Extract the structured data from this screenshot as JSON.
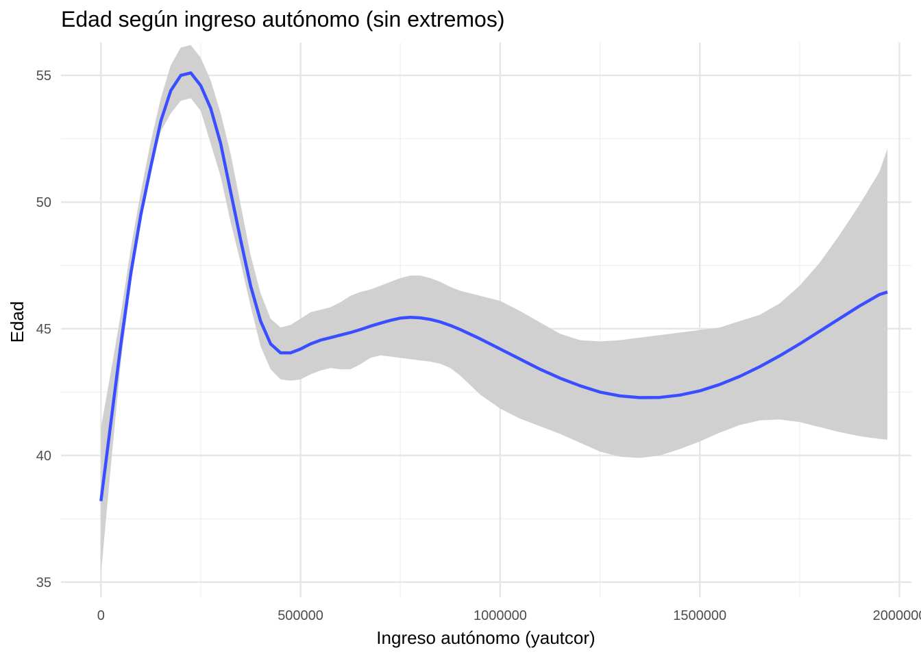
{
  "chart_data": {
    "type": "line",
    "title": "Edad según ingreso autónomo (sin extremos)",
    "xlabel": "Ingreso autónomo (yautcor)",
    "ylabel": "Edad",
    "xlim": [
      -100000,
      2030000
    ],
    "ylim": [
      34.4,
      56.3
    ],
    "xticks": [
      0,
      500000,
      1000000,
      1500000,
      2000000
    ],
    "xtick_labels": [
      "0",
      "500000",
      "1000000",
      "1500000",
      "2000000"
    ],
    "yticks": [
      35,
      40,
      45,
      50,
      55
    ],
    "ytick_labels": [
      "35",
      "40",
      "45",
      "50",
      "55"
    ],
    "x_minor": [
      250000,
      750000,
      1250000,
      1750000
    ],
    "y_minor": [
      37.5,
      42.5,
      47.5,
      52.5
    ],
    "grid": true,
    "legend": "none",
    "colors": {
      "line": "#3A4EFF",
      "ribbon": "#D0D0D0",
      "grid_major": "#E6E6E6",
      "grid_minor": "#F0F0F0",
      "background": "#FFFFFF"
    },
    "series": [
      {
        "x": [
          0,
          25000,
          50000,
          75000,
          100000,
          125000,
          150000,
          175000,
          200000,
          225000,
          250000,
          275000,
          300000,
          325000,
          350000,
          375000,
          400000,
          425000,
          450000,
          475000,
          500000,
          525000,
          550000,
          575000,
          600000,
          625000,
          650000,
          675000,
          700000,
          725000,
          750000,
          775000,
          800000,
          825000,
          850000,
          875000,
          900000,
          950000,
          1000000,
          1050000,
          1100000,
          1150000,
          1200000,
          1250000,
          1300000,
          1350000,
          1400000,
          1450000,
          1500000,
          1550000,
          1600000,
          1650000,
          1700000,
          1750000,
          1800000,
          1850000,
          1900000,
          1950000,
          1970000
        ],
        "y": [
          38.2,
          41.3,
          44.4,
          47.2,
          49.5,
          51.4,
          53.2,
          54.4,
          55.0,
          55.1,
          54.6,
          53.7,
          52.3,
          50.4,
          48.5,
          46.7,
          45.3,
          44.4,
          44.05,
          44.05,
          44.2,
          44.4,
          44.55,
          44.65,
          44.75,
          44.85,
          44.97,
          45.1,
          45.22,
          45.33,
          45.42,
          45.45,
          45.43,
          45.37,
          45.27,
          45.13,
          44.97,
          44.6,
          44.2,
          43.8,
          43.4,
          43.05,
          42.75,
          42.5,
          42.35,
          42.28,
          42.29,
          42.38,
          42.55,
          42.8,
          43.12,
          43.5,
          43.93,
          44.4,
          44.9,
          45.4,
          45.9,
          46.35,
          46.45
        ],
        "lower": [
          35.3,
          39.6,
          43.7,
          46.8,
          49.2,
          51.3,
          52.8,
          53.5,
          54.0,
          54.1,
          53.6,
          52.3,
          51.0,
          49.2,
          47.6,
          45.9,
          44.3,
          43.4,
          43.0,
          42.95,
          43.0,
          43.2,
          43.35,
          43.45,
          43.4,
          43.4,
          43.6,
          43.85,
          43.95,
          43.9,
          43.85,
          43.8,
          43.75,
          43.7,
          43.62,
          43.45,
          43.15,
          42.4,
          41.85,
          41.45,
          41.15,
          40.85,
          40.5,
          40.15,
          39.95,
          39.9,
          40.0,
          40.25,
          40.55,
          40.9,
          41.2,
          41.38,
          41.42,
          41.32,
          41.12,
          40.92,
          40.76,
          40.65,
          40.62
        ],
        "upper": [
          41.1,
          43.3,
          45.6,
          48.2,
          50.4,
          52.4,
          54.1,
          55.4,
          56.1,
          56.2,
          55.7,
          54.8,
          53.5,
          51.9,
          49.9,
          47.9,
          46.4,
          45.4,
          45.05,
          45.15,
          45.4,
          45.65,
          45.75,
          45.85,
          46.05,
          46.3,
          46.45,
          46.55,
          46.7,
          46.85,
          47.0,
          47.1,
          47.1,
          47.0,
          46.85,
          46.65,
          46.5,
          46.3,
          46.1,
          45.7,
          45.25,
          44.8,
          44.55,
          44.5,
          44.55,
          44.65,
          44.75,
          44.85,
          44.95,
          45.05,
          45.3,
          45.55,
          46.0,
          46.7,
          47.6,
          48.7,
          49.9,
          51.2,
          52.1
        ]
      }
    ]
  }
}
